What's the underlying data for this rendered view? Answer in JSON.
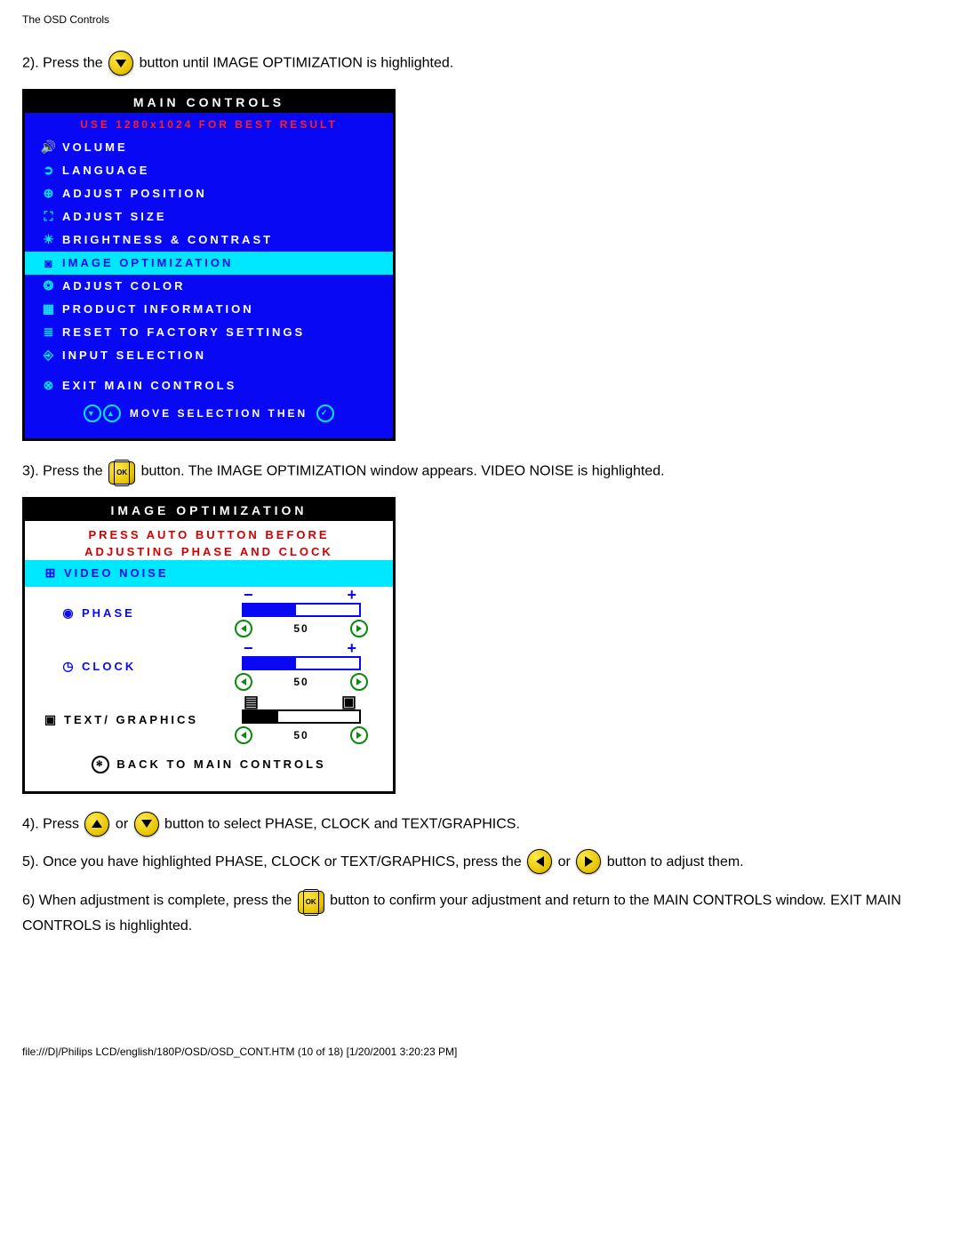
{
  "page": {
    "header": "The OSD Controls",
    "footer": "file:///D|/Philips LCD/english/180P/OSD/OSD_CONT.HTM (10 of 18) [1/20/2001 3:20:23 PM]"
  },
  "instr": {
    "step2a": "2). Press the ",
    "step2b": " button until IMAGE OPTIMIZATION is highlighted.",
    "step3a": "3). Press the ",
    "step3b": " button. The IMAGE OPTIMIZATION window appears. VIDEO NOISE is highlighted.",
    "step4a": "4). Press ",
    "step4b": " or ",
    "step4c": " button to select PHASE, CLOCK and TEXT/GRAPHICS.",
    "step5a": "5). Once you have highlighted PHASE, CLOCK or TEXT/GRAPHICS, press the ",
    "step5b": " or ",
    "step5c": " button to adjust them.",
    "step6a": "6) When adjustment is complete, press the ",
    "step6b": " button to confirm your adjustment and return to the MAIN CONTROLS window.  EXIT MAIN CONTROLS is highlighted."
  },
  "osd1": {
    "title": "MAIN CONTROLS",
    "hint": "USE 1280x1024 FOR BEST RESULT",
    "items": [
      {
        "icon": "🔊",
        "label": "VOLUME",
        "hl": false
      },
      {
        "icon": "➲",
        "label": "LANGUAGE",
        "hl": false
      },
      {
        "icon": "⊕",
        "label": "ADJUST POSITION",
        "hl": false
      },
      {
        "icon": "⛶",
        "label": "ADJUST SIZE",
        "hl": false
      },
      {
        "icon": "☀",
        "label": "BRIGHTNESS & CONTRAST",
        "hl": false
      },
      {
        "icon": "◙",
        "label": "IMAGE OPTIMIZATION",
        "hl": true
      },
      {
        "icon": "❂",
        "label": "ADJUST COLOR",
        "hl": false
      },
      {
        "icon": "▦",
        "label": "PRODUCT INFORMATION",
        "hl": false
      },
      {
        "icon": "≣",
        "label": "RESET TO FACTORY SETTINGS",
        "hl": false
      },
      {
        "icon": "⎆",
        "label": "INPUT SELECTION",
        "hl": false
      }
    ],
    "exit": {
      "icon": "⊗",
      "label": "EXIT MAIN CONTROLS"
    },
    "footer": "MOVE SELECTION THEN"
  },
  "osd2": {
    "title": "IMAGE OPTIMIZATION",
    "warn1": "PRESS AUTO BUTTON BEFORE",
    "warn2": "ADJUSTING PHASE AND CLOCK",
    "video_noise": {
      "icon": "⊞",
      "label": "VIDEO NOISE"
    },
    "phase": {
      "icon": "◉",
      "label": "PHASE",
      "value": "50",
      "fill_pct": 45
    },
    "clock": {
      "icon": "◷",
      "label": "CLOCK",
      "value": "50",
      "fill_pct": 45
    },
    "textg": {
      "icon": "▣",
      "label": "TEXT/ GRAPHICS",
      "value": "50",
      "fill_pct": 30
    },
    "back": "BACK TO MAIN CONTROLS"
  },
  "style": {
    "blue": "#0808f5",
    "cyan": "#00e8ff",
    "red": "#ff2020",
    "dred": "#d00000",
    "yellow": "#e6c200",
    "green": "#0a8a0a",
    "black": "#000000",
    "white": "#ffffff"
  }
}
